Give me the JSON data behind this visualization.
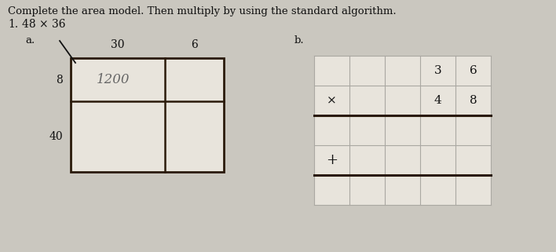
{
  "title": "Complete the area model. Then multiply by using the standard algorithm.",
  "problem_num": "1.",
  "problem_expr": "48 × 36",
  "label_a": "a.",
  "label_b": "b.",
  "area_col_labels": [
    "30",
    "6"
  ],
  "area_row_labels": [
    "8",
    "40"
  ],
  "area_filled_text": "1200",
  "std_col_digits": [
    "3",
    "6"
  ],
  "std_row_digits": [
    "4",
    "8"
  ],
  "operator_x": "×",
  "operator_plus": "+",
  "bg_color": "#cac7bf",
  "box_color": "#2a1a0a",
  "grid_color": "#aaa8a2",
  "text_color": "#111111",
  "handwritten_color": "#666666"
}
